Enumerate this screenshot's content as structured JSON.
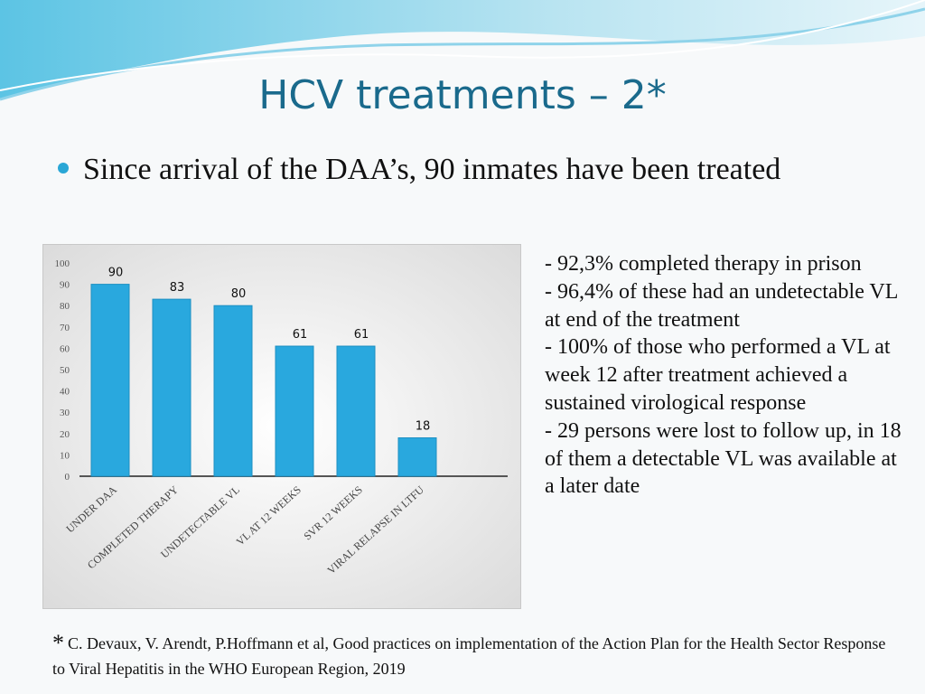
{
  "title": "HCV treatments – 2*",
  "bullet": "Since arrival of the DAA’s, 90 inmates have been treated",
  "notes": [
    "- 92,3% completed therapy in prison",
    "- 96,4% of these had an undetectable VL at end of the treatment",
    "- 100% of those who performed a VL at week 12 after treatment achieved a sustained virological response",
    "- 29 persons were lost to follow up, in 18 of them a detectable VL was available at a later date"
  ],
  "footnote": {
    "mark": "*",
    "text": "C. Devaux, V. Arendt, P.Hoffmann et al, Good practices on implementation of the Action Plan for the Health Sector Response to Viral Hepatitis in the WHO European Region, 2019"
  },
  "chart_data": {
    "type": "bar",
    "categories": [
      "UNDER DAA",
      "COMPLETED THERAPY",
      "UNDETECTABLE VL",
      "VL AT 12 WEEKS",
      "SVR 12 WEEKS",
      "VIRAL RELAPSE IN LTFU"
    ],
    "values": [
      90,
      83,
      80,
      61,
      61,
      18
    ],
    "color": "#29a8de",
    "ylim": [
      0,
      100
    ],
    "yticks": [
      0,
      10,
      20,
      30,
      40,
      50,
      60,
      70,
      80,
      90,
      100
    ]
  }
}
